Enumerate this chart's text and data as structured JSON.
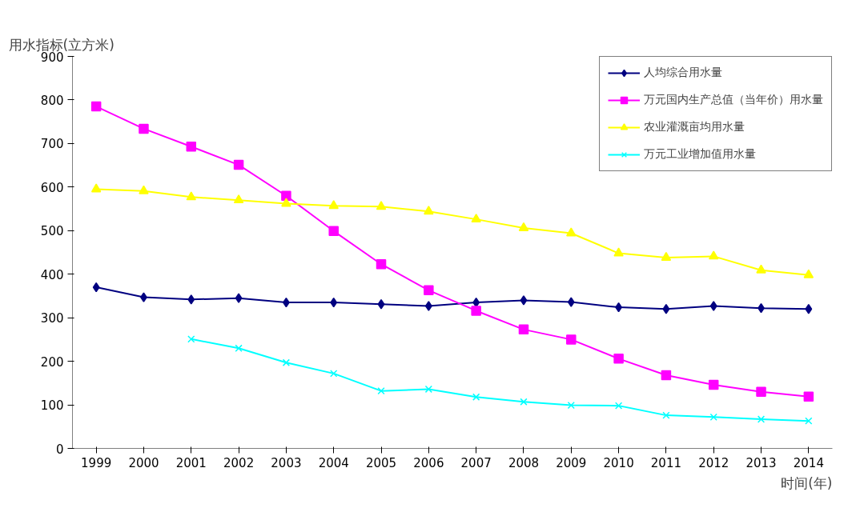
{
  "chart_data": {
    "type": "line",
    "ylabel": "用水指标(立方米)",
    "xlabel": "时间(年)",
    "categories": [
      "1999",
      "2000",
      "2001",
      "2002",
      "2003",
      "2004",
      "2005",
      "2006",
      "2007",
      "2008",
      "2009",
      "2010",
      "2011",
      "2012",
      "2013",
      "2014"
    ],
    "ylim": [
      0,
      900
    ],
    "yticks": [
      0,
      100,
      200,
      300,
      400,
      500,
      600,
      700,
      800,
      900
    ],
    "grid": false,
    "legend": "top right",
    "line_style": "solid",
    "series": [
      {
        "name": "人均综合用水量",
        "color": "#000080",
        "marker": "diamond",
        "values": [
          370,
          347,
          342,
          345,
          335,
          335,
          331,
          327,
          335,
          340,
          336,
          324,
          320,
          327,
          322,
          320
        ]
      },
      {
        "name": "万元国内生产总值（当年价）用水量",
        "color": "#ff00ff",
        "marker": "square",
        "values": [
          785,
          734,
          693,
          651,
          580,
          499,
          423,
          363,
          316,
          273,
          250,
          206,
          168,
          146,
          130,
          119
        ]
      },
      {
        "name": "农业灌溉亩均用水量",
        "color": "#ffff00",
        "marker": "triangle",
        "values": [
          595,
          591,
          577,
          570,
          562,
          557,
          555,
          544,
          526,
          506,
          494,
          448,
          438,
          441,
          409,
          398
        ]
      },
      {
        "name": "万元工业增加值用水量",
        "color": "#00ffff",
        "marker": "cross",
        "values": [
          null,
          null,
          251,
          230,
          197,
          172,
          132,
          136,
          118,
          107,
          99,
          98,
          76,
          72,
          67,
          63
        ]
      }
    ]
  }
}
